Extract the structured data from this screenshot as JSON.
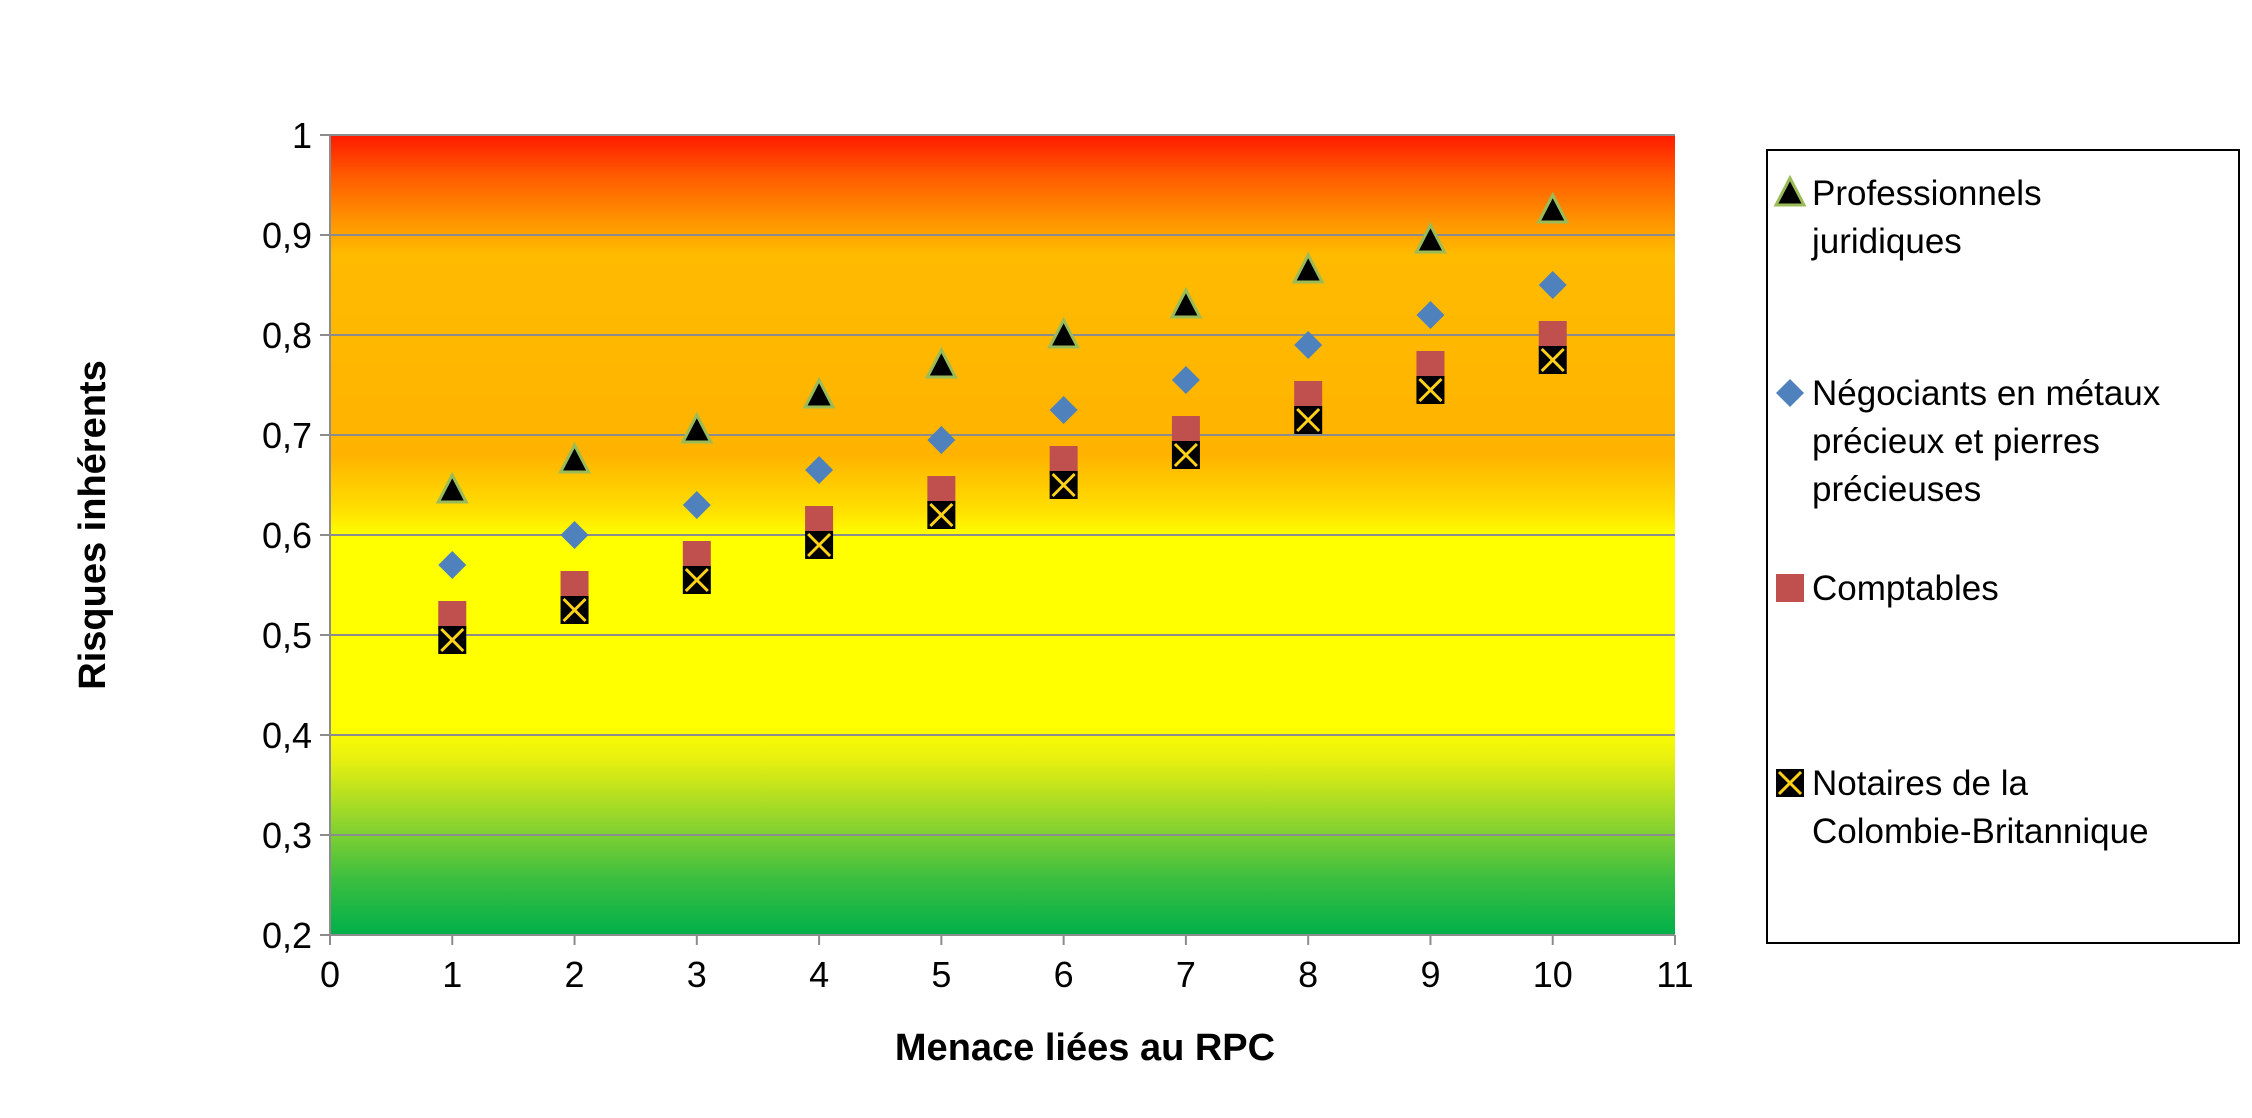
{
  "chart_data": {
    "type": "scatter",
    "title": "",
    "xlabel": "Menace liées au RPC",
    "ylabel": "Risques inhérents",
    "xlim": [
      0,
      11
    ],
    "ylim": [
      0.2,
      1
    ],
    "x_ticks": [
      0,
      1,
      2,
      3,
      4,
      5,
      6,
      7,
      8,
      9,
      10,
      11
    ],
    "x_tick_labels": [
      "0",
      "1",
      "2",
      "3",
      "4",
      "5",
      "6",
      "7",
      "8",
      "9",
      "10",
      "11"
    ],
    "y_ticks": [
      0.2,
      0.3,
      0.4,
      0.5,
      0.6,
      0.7,
      0.8,
      0.9,
      1
    ],
    "y_tick_labels": [
      "0,2",
      "0,3",
      "0,4",
      "0,5",
      "0,6",
      "0,7",
      "0,8",
      "0,9",
      "1"
    ],
    "grid": "horizontal",
    "legend_position": "right",
    "background_bands": [
      {
        "from": 0.2,
        "to": 0.4,
        "color": "green-to-yellow"
      },
      {
        "from": 0.4,
        "to": 0.65,
        "color": "yellow"
      },
      {
        "from": 0.65,
        "to": 0.9,
        "color": "orange"
      },
      {
        "from": 0.9,
        "to": 1.0,
        "color": "red"
      }
    ],
    "x": [
      1,
      2,
      3,
      4,
      5,
      6,
      7,
      8,
      9,
      10
    ],
    "series": [
      {
        "name": "Professionnels juridiques",
        "legend_lines": [
          "Professionnels",
          "juridiques"
        ],
        "marker": "triangle",
        "color": "#000000",
        "values": [
          0.645,
          0.675,
          0.705,
          0.74,
          0.77,
          0.8,
          0.83,
          0.865,
          0.895,
          0.925
        ]
      },
      {
        "name": "Négociants en métaux précieux et pierres précieuses",
        "legend_lines": [
          "Négociants en métaux",
          "précieux et pierres",
          "précieuses"
        ],
        "marker": "diamond",
        "color": "#4f81bd",
        "values": [
          0.57,
          0.6,
          0.63,
          0.665,
          0.695,
          0.725,
          0.755,
          0.79,
          0.82,
          0.85
        ]
      },
      {
        "name": "Comptables",
        "legend_lines": [
          "Comptables"
        ],
        "marker": "square",
        "color": "#c0504d",
        "values": [
          0.52,
          0.55,
          0.58,
          0.615,
          0.645,
          0.675,
          0.705,
          0.74,
          0.77,
          0.8
        ]
      },
      {
        "name": "Notaires de la Colombie-Britannique",
        "legend_lines": [
          "Notaires de la",
          "Colombie-Britannique"
        ],
        "marker": "x-square",
        "color": "#000000",
        "values": [
          0.495,
          0.525,
          0.555,
          0.59,
          0.62,
          0.65,
          0.68,
          0.715,
          0.745,
          0.775
        ]
      }
    ]
  }
}
